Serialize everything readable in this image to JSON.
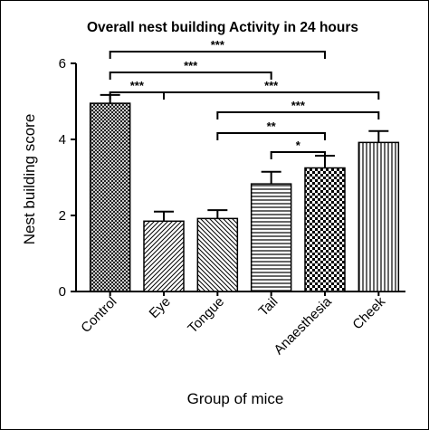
{
  "chart_data": {
    "type": "bar",
    "title": "Overall  nest building Activity in 24 hours",
    "xlabel": "Group of mice",
    "ylabel": "Nest building score",
    "ylim": [
      0,
      6
    ],
    "yticks": [
      "0",
      "2",
      "4",
      "6"
    ],
    "categories": [
      "Control",
      "Eye",
      "Tongue",
      "Tail",
      "Anaesthesia",
      "Cheek"
    ],
    "values": [
      4.95,
      1.85,
      1.92,
      2.83,
      3.25,
      3.92
    ],
    "errors": [
      0.22,
      0.25,
      0.22,
      0.32,
      0.32,
      0.3
    ],
    "patterns": [
      "crosshatch",
      "diagonal-right",
      "diagonal-left",
      "horizontal",
      "checker",
      "vertical"
    ],
    "grid": false,
    "legend": "none",
    "significance": [
      {
        "from": 0,
        "to": 1,
        "label": "***"
      },
      {
        "from": 0,
        "to": 3,
        "label": "***"
      },
      {
        "from": 0,
        "to": 4,
        "label": "***"
      },
      {
        "from": 1,
        "to": 5,
        "label": "***"
      },
      {
        "from": 2,
        "to": 5,
        "label": "***"
      },
      {
        "from": 2,
        "to": 4,
        "label": "**"
      },
      {
        "from": 3,
        "to": 4,
        "label": "*"
      }
    ]
  }
}
